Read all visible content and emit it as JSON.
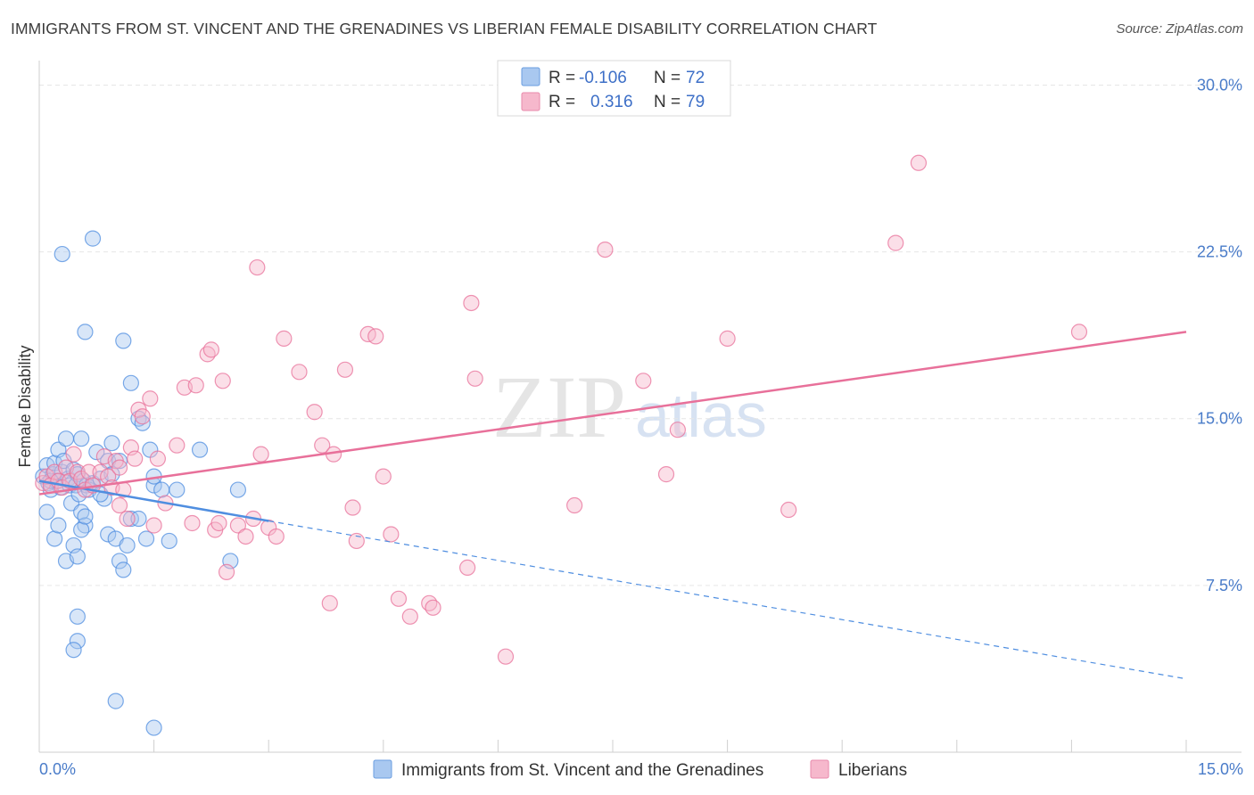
{
  "title": "IMMIGRANTS FROM ST. VINCENT AND THE GRENADINES VS LIBERIAN FEMALE DISABILITY CORRELATION CHART",
  "source": "Source: ZipAtlas.com",
  "watermark": {
    "zip": "ZIP",
    "atlas": "atlas"
  },
  "legend": {
    "rows": [
      {
        "r_label": "R =",
        "r_value": "-0.106",
        "n_label": "N =",
        "n_value": "72",
        "color": "#a9c8f0"
      },
      {
        "r_label": "R =",
        "r_value": "0.316",
        "n_label": "N =",
        "n_value": "79",
        "color": "#f6b8cc"
      }
    ]
  },
  "bottom_legend": [
    {
      "label": "Immigrants from St. Vincent and the Grenadines",
      "color": "#a9c8f0"
    },
    {
      "label": "Liberians",
      "color": "#f6b8cc"
    }
  ],
  "chart_data": {
    "type": "scatter",
    "title": "IMMIGRANTS FROM ST. VINCENT AND THE GRENADINES VS LIBERIAN FEMALE DISABILITY CORRELATION CHART",
    "xlabel": "",
    "ylabel": "Female Disability",
    "xlim": [
      0,
      15
    ],
    "ylim": [
      0,
      31.1
    ],
    "x_ticks": [
      {
        "value": 0,
        "label": "0.0%"
      },
      {
        "value": 15,
        "label": "15.0%"
      }
    ],
    "y_ticks": [
      {
        "value": 7.5,
        "label": "7.5%"
      },
      {
        "value": 15.0,
        "label": "15.0%"
      },
      {
        "value": 22.5,
        "label": "22.5%"
      },
      {
        "value": 30.0,
        "label": "30.0%"
      }
    ],
    "grid": true,
    "series": [
      {
        "name": "Immigrants from St. Vincent and the Grenadines",
        "color": "#4f8ee0",
        "fill": "#a9c8f0",
        "trend": {
          "x": [
            0,
            3.0
          ],
          "y": [
            12.2,
            10.4
          ],
          "dashed_to": [
            15,
            3.3
          ]
        },
        "points": [
          [
            0.05,
            12.4
          ],
          [
            0.1,
            12.9
          ],
          [
            0.12,
            12.1
          ],
          [
            0.15,
            11.8
          ],
          [
            0.18,
            12.5
          ],
          [
            0.2,
            13.0
          ],
          [
            0.22,
            12.2
          ],
          [
            0.25,
            13.6
          ],
          [
            0.28,
            11.9
          ],
          [
            0.3,
            12.6
          ],
          [
            0.32,
            13.1
          ],
          [
            0.35,
            14.1
          ],
          [
            0.38,
            12.3
          ],
          [
            0.4,
            12.0
          ],
          [
            0.42,
            11.2
          ],
          [
            0.45,
            12.7
          ],
          [
            0.48,
            12.0
          ],
          [
            0.5,
            12.5
          ],
          [
            0.52,
            11.6
          ],
          [
            0.55,
            10.8
          ],
          [
            0.58,
            12.2
          ],
          [
            0.6,
            10.2
          ],
          [
            0.62,
            12.0
          ],
          [
            0.65,
            11.8
          ],
          [
            0.7,
            12.1
          ],
          [
            0.75,
            13.5
          ],
          [
            0.8,
            12.3
          ],
          [
            0.85,
            11.4
          ],
          [
            0.9,
            13.1
          ],
          [
            0.95,
            12.5
          ],
          [
            0.1,
            10.8
          ],
          [
            0.2,
            9.6
          ],
          [
            0.25,
            10.2
          ],
          [
            0.35,
            8.6
          ],
          [
            0.45,
            9.3
          ],
          [
            0.5,
            8.8
          ],
          [
            0.55,
            10.0
          ],
          [
            0.6,
            10.6
          ],
          [
            0.8,
            11.6
          ],
          [
            0.9,
            9.8
          ],
          [
            1.0,
            9.6
          ],
          [
            1.05,
            8.6
          ],
          [
            1.1,
            8.2
          ],
          [
            1.15,
            9.3
          ],
          [
            1.2,
            10.5
          ],
          [
            1.3,
            10.5
          ],
          [
            1.4,
            9.6
          ],
          [
            1.5,
            12.0
          ],
          [
            1.6,
            11.8
          ],
          [
            1.7,
            9.5
          ],
          [
            1.8,
            11.8
          ],
          [
            2.1,
            13.6
          ],
          [
            2.5,
            8.6
          ],
          [
            2.6,
            11.8
          ],
          [
            0.3,
            22.4
          ],
          [
            0.7,
            23.1
          ],
          [
            0.6,
            18.9
          ],
          [
            1.1,
            18.5
          ],
          [
            1.2,
            16.6
          ],
          [
            1.3,
            15.0
          ],
          [
            1.35,
            14.8
          ],
          [
            1.45,
            13.6
          ],
          [
            0.95,
            13.9
          ],
          [
            1.05,
            13.1
          ],
          [
            1.5,
            12.4
          ],
          [
            0.5,
            6.1
          ],
          [
            0.5,
            5.0
          ],
          [
            0.45,
            4.6
          ],
          [
            1.0,
            2.3
          ],
          [
            1.5,
            1.1
          ],
          [
            0.55,
            14.1
          ],
          [
            0.15,
            12.2
          ]
        ]
      },
      {
        "name": "Liberians",
        "color": "#e8709a",
        "fill": "#f6b8cc",
        "trend": {
          "x": [
            0,
            15
          ],
          "y": [
            11.6,
            18.9
          ]
        },
        "points": [
          [
            0.05,
            12.1
          ],
          [
            0.1,
            12.4
          ],
          [
            0.15,
            12.0
          ],
          [
            0.2,
            12.6
          ],
          [
            0.25,
            12.2
          ],
          [
            0.3,
            11.9
          ],
          [
            0.35,
            12.8
          ],
          [
            0.4,
            12.2
          ],
          [
            0.45,
            13.4
          ],
          [
            0.5,
            12.6
          ],
          [
            0.55,
            12.3
          ],
          [
            0.6,
            11.8
          ],
          [
            0.65,
            12.6
          ],
          [
            0.7,
            12.0
          ],
          [
            0.8,
            12.6
          ],
          [
            0.85,
            13.3
          ],
          [
            0.9,
            12.4
          ],
          [
            0.95,
            11.9
          ],
          [
            1.0,
            13.1
          ],
          [
            1.05,
            12.8
          ],
          [
            1.1,
            11.8
          ],
          [
            1.15,
            10.5
          ],
          [
            1.2,
            13.7
          ],
          [
            1.25,
            13.2
          ],
          [
            1.3,
            15.4
          ],
          [
            1.35,
            15.1
          ],
          [
            1.45,
            15.9
          ],
          [
            1.5,
            10.2
          ],
          [
            1.55,
            13.2
          ],
          [
            1.65,
            11.2
          ],
          [
            1.8,
            13.8
          ],
          [
            1.9,
            16.4
          ],
          [
            2.0,
            10.3
          ],
          [
            2.05,
            16.5
          ],
          [
            2.2,
            17.9
          ],
          [
            2.25,
            18.1
          ],
          [
            2.3,
            10.0
          ],
          [
            2.35,
            10.3
          ],
          [
            2.4,
            16.7
          ],
          [
            2.45,
            8.1
          ],
          [
            2.6,
            10.2
          ],
          [
            2.7,
            9.7
          ],
          [
            2.8,
            10.5
          ],
          [
            2.85,
            21.8
          ],
          [
            2.9,
            13.4
          ],
          [
            3.0,
            10.1
          ],
          [
            3.1,
            9.7
          ],
          [
            3.2,
            18.6
          ],
          [
            3.4,
            17.1
          ],
          [
            3.6,
            15.3
          ],
          [
            3.7,
            13.8
          ],
          [
            3.8,
            6.7
          ],
          [
            3.85,
            13.4
          ],
          [
            4.0,
            17.2
          ],
          [
            4.1,
            11.0
          ],
          [
            4.15,
            9.5
          ],
          [
            4.3,
            18.8
          ],
          [
            4.4,
            18.7
          ],
          [
            4.5,
            12.4
          ],
          [
            4.6,
            9.8
          ],
          [
            4.7,
            6.9
          ],
          [
            4.85,
            6.1
          ],
          [
            5.1,
            6.7
          ],
          [
            5.15,
            6.5
          ],
          [
            5.6,
            8.3
          ],
          [
            5.65,
            20.2
          ],
          [
            5.7,
            16.8
          ],
          [
            6.1,
            4.3
          ],
          [
            7.0,
            11.1
          ],
          [
            7.4,
            22.6
          ],
          [
            7.9,
            16.7
          ],
          [
            8.2,
            12.5
          ],
          [
            8.35,
            14.5
          ],
          [
            9.0,
            18.6
          ],
          [
            9.8,
            10.9
          ],
          [
            11.2,
            22.9
          ],
          [
            11.5,
            26.5
          ],
          [
            13.6,
            18.9
          ],
          [
            1.05,
            11.1
          ]
        ]
      }
    ]
  }
}
